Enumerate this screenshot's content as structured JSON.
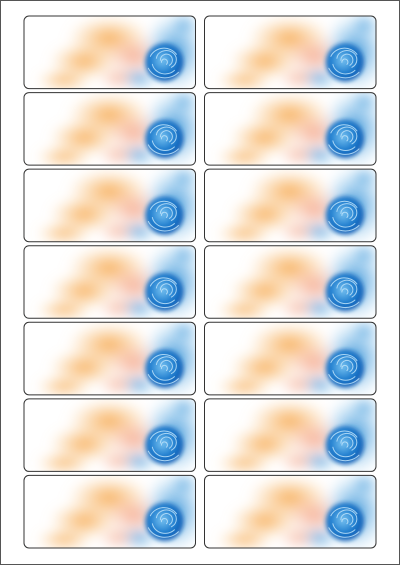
{
  "sheet": {
    "rows": 7,
    "columns": 2
  }
}
